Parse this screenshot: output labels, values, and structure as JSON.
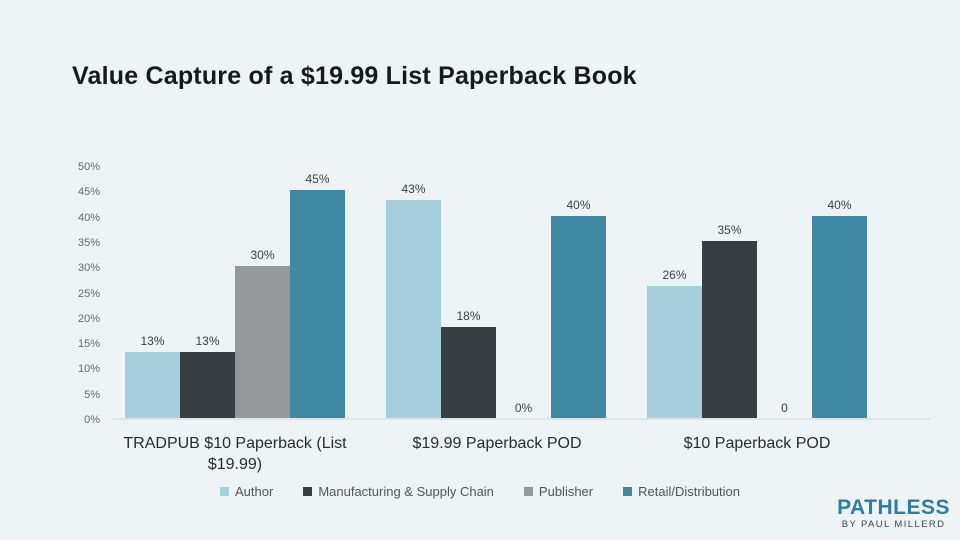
{
  "chart_data": {
    "type": "bar",
    "title": "Value Capture of a $19.99 List Paperback Book",
    "categories": [
      "TRADPUB $10 Paperback (List $19.99)",
      "$19.99 Paperback POD",
      "$10 Paperback POD"
    ],
    "series": [
      {
        "name": "Author",
        "color": "#a6cfdc",
        "values": [
          13,
          43,
          26
        ],
        "labels": [
          "13%",
          "43%",
          "26%"
        ]
      },
      {
        "name": "Manufacturing & Supply Chain",
        "color": "#393e43",
        "values": [
          13,
          18,
          35
        ],
        "labels": [
          "13%",
          "18%",
          "35%"
        ]
      },
      {
        "name": "Publisher",
        "color": "#95999c",
        "values": [
          30,
          0,
          0
        ],
        "labels": [
          "30%",
          "0%",
          "0"
        ]
      },
      {
        "name": "Retail/Distribution",
        "color": "#3f89a2",
        "values": [
          45,
          40,
          40
        ],
        "labels": [
          "45%",
          "40%",
          "40%"
        ]
      }
    ],
    "ylabel": "",
    "xlabel": "",
    "ylim": [
      0,
      50
    ],
    "ytick_step": 5,
    "ytick_labels": [
      "0%",
      "5%",
      "10%",
      "15%",
      "20%",
      "25%",
      "30%",
      "35%",
      "40%",
      "45%",
      "50%"
    ],
    "grid": false,
    "legend_position": "bottom"
  },
  "logo": {
    "brand": "PATHLESS",
    "subtitle": "BY PAUL MILLERD"
  },
  "colors": {
    "background": "#eef4f5",
    "axis_line": "#dfe5e7",
    "tick_text": "#5f6a72",
    "value_label_text": "#3a4147",
    "category_text": "#262c31",
    "legend_text": "#4e565c",
    "title_text": "#16191d",
    "logo_brand": "#2f7e9f",
    "logo_subtitle": "#3d4449"
  }
}
